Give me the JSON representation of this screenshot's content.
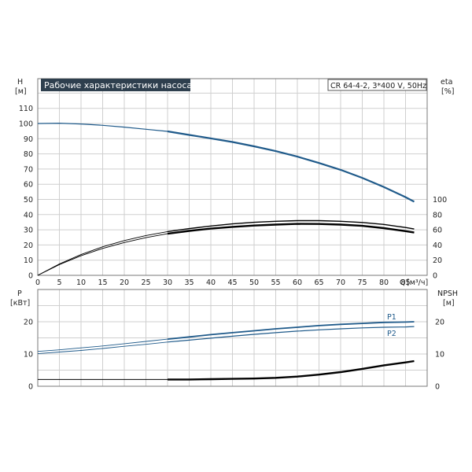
{
  "chart_data": [
    {
      "type": "line",
      "panel": "upper",
      "title": "Рабочие характеристики насоса",
      "model_label": "CR 64-4-2, 3*400 V, 50Hz",
      "ylabel": "H",
      "yunit": "[м]",
      "ylabel_right": "eta",
      "yunit_right": "[%]",
      "xlabel": "Q",
      "xunit": "[м³/ч]",
      "xlim": [
        0,
        90
      ],
      "ylim": [
        0,
        120
      ],
      "x_ticks": [
        "0",
        "5",
        "10",
        "15",
        "20",
        "25",
        "30",
        "35",
        "40",
        "45",
        "50",
        "55",
        "60",
        "65",
        "70",
        "75",
        "80",
        "85"
      ],
      "y_ticks": [
        "0",
        "10",
        "20",
        "30",
        "40",
        "50",
        "60",
        "70",
        "80",
        "90",
        "100",
        "110"
      ],
      "y2_ticks": [
        "0",
        "20",
        "40",
        "60",
        "80",
        "100"
      ],
      "y2lim": [
        0,
        100
      ],
      "grid": true,
      "series": [
        {
          "axis": "left",
          "color": "#1f5a8a",
          "x": [
            0,
            5,
            10,
            15,
            20,
            25,
            30,
            35,
            40,
            45,
            50,
            55,
            60,
            65,
            70,
            75,
            80,
            85
          ],
          "values": [
            100,
            100.2,
            99.7,
            98.8,
            97.6,
            96.2,
            94.8,
            92.5,
            90.2,
            87.8,
            85,
            81.8,
            78.2,
            74,
            69.5,
            64.2,
            58.2,
            51.5
          ],
          "x_end": 87,
          "y_end": 48.5
        },
        {
          "axis": "right",
          "color": "#000000",
          "x": [
            0,
            5,
            10,
            15,
            20,
            25,
            30,
            35,
            40,
            45,
            50,
            55,
            60,
            65,
            70,
            75,
            80,
            85,
            87
          ],
          "values": [
            0,
            14.2,
            25.8,
            35.4,
            43.2,
            49.6,
            54.8,
            58.6,
            61.6,
            63.8,
            65.6,
            66.8,
            67.8,
            67.7,
            66.8,
            65.2,
            62.2,
            58.2,
            56.4
          ]
        },
        {
          "axis": "right",
          "color": "#000000",
          "x": [
            0,
            5,
            10,
            15,
            20,
            25,
            30,
            35,
            40,
            45,
            50,
            55,
            60,
            65,
            70,
            75,
            80,
            85,
            87
          ],
          "values": [
            0,
            15,
            27.4,
            37.6,
            45.8,
            52.4,
            57.6,
            61.6,
            65,
            67.8,
            69.8,
            71.2,
            72,
            72,
            71.2,
            69.6,
            67,
            63,
            61
          ]
        }
      ]
    },
    {
      "type": "line",
      "panel": "lower",
      "ylabel": "P",
      "yunit": "[кВт]",
      "ylabel_right": "NPSH",
      "yunit_right": "[м]",
      "ylim": [
        0,
        30
      ],
      "y_ticks": [
        "0",
        "10",
        "20"
      ],
      "y2_ticks": [
        "0",
        "10",
        "20"
      ],
      "y2lim": [
        0,
        30
      ],
      "grid": true,
      "series": [
        {
          "name": "P1",
          "axis": "left",
          "color": "#1f5a8a",
          "x": [
            0,
            5,
            10,
            15,
            20,
            25,
            30,
            35,
            40,
            45,
            50,
            55,
            60,
            65,
            70,
            75,
            80,
            85,
            87
          ],
          "values": [
            10.8,
            11.3,
            11.9,
            12.5,
            13.2,
            13.9,
            14.6,
            15.3,
            16,
            16.6,
            17.2,
            17.8,
            18.3,
            18.8,
            19.2,
            19.5,
            19.8,
            19.9,
            20
          ]
        },
        {
          "name": "P2",
          "axis": "left",
          "color": "#1f5a8a",
          "x": [
            0,
            5,
            10,
            15,
            20,
            25,
            30,
            35,
            40,
            45,
            50,
            55,
            60,
            65,
            70,
            75,
            80,
            85,
            87
          ],
          "values": [
            10.1,
            10.6,
            11.1,
            11.7,
            12.4,
            13,
            13.7,
            14.3,
            14.9,
            15.5,
            16.1,
            16.6,
            17.1,
            17.5,
            17.8,
            18.1,
            18.3,
            18.4,
            18.5
          ]
        },
        {
          "axis": "right",
          "color": "#000000",
          "x": [
            0,
            5,
            10,
            15,
            20,
            25,
            30,
            35,
            40,
            45,
            50,
            55,
            60,
            65,
            70,
            75,
            80,
            85,
            87
          ],
          "values": [
            2.1,
            2.1,
            2.1,
            2.1,
            2.1,
            2.1,
            2.1,
            2.1,
            2.2,
            2.3,
            2.4,
            2.6,
            3,
            3.6,
            4.4,
            5.4,
            6.5,
            7.4,
            7.8
          ]
        }
      ]
    }
  ]
}
